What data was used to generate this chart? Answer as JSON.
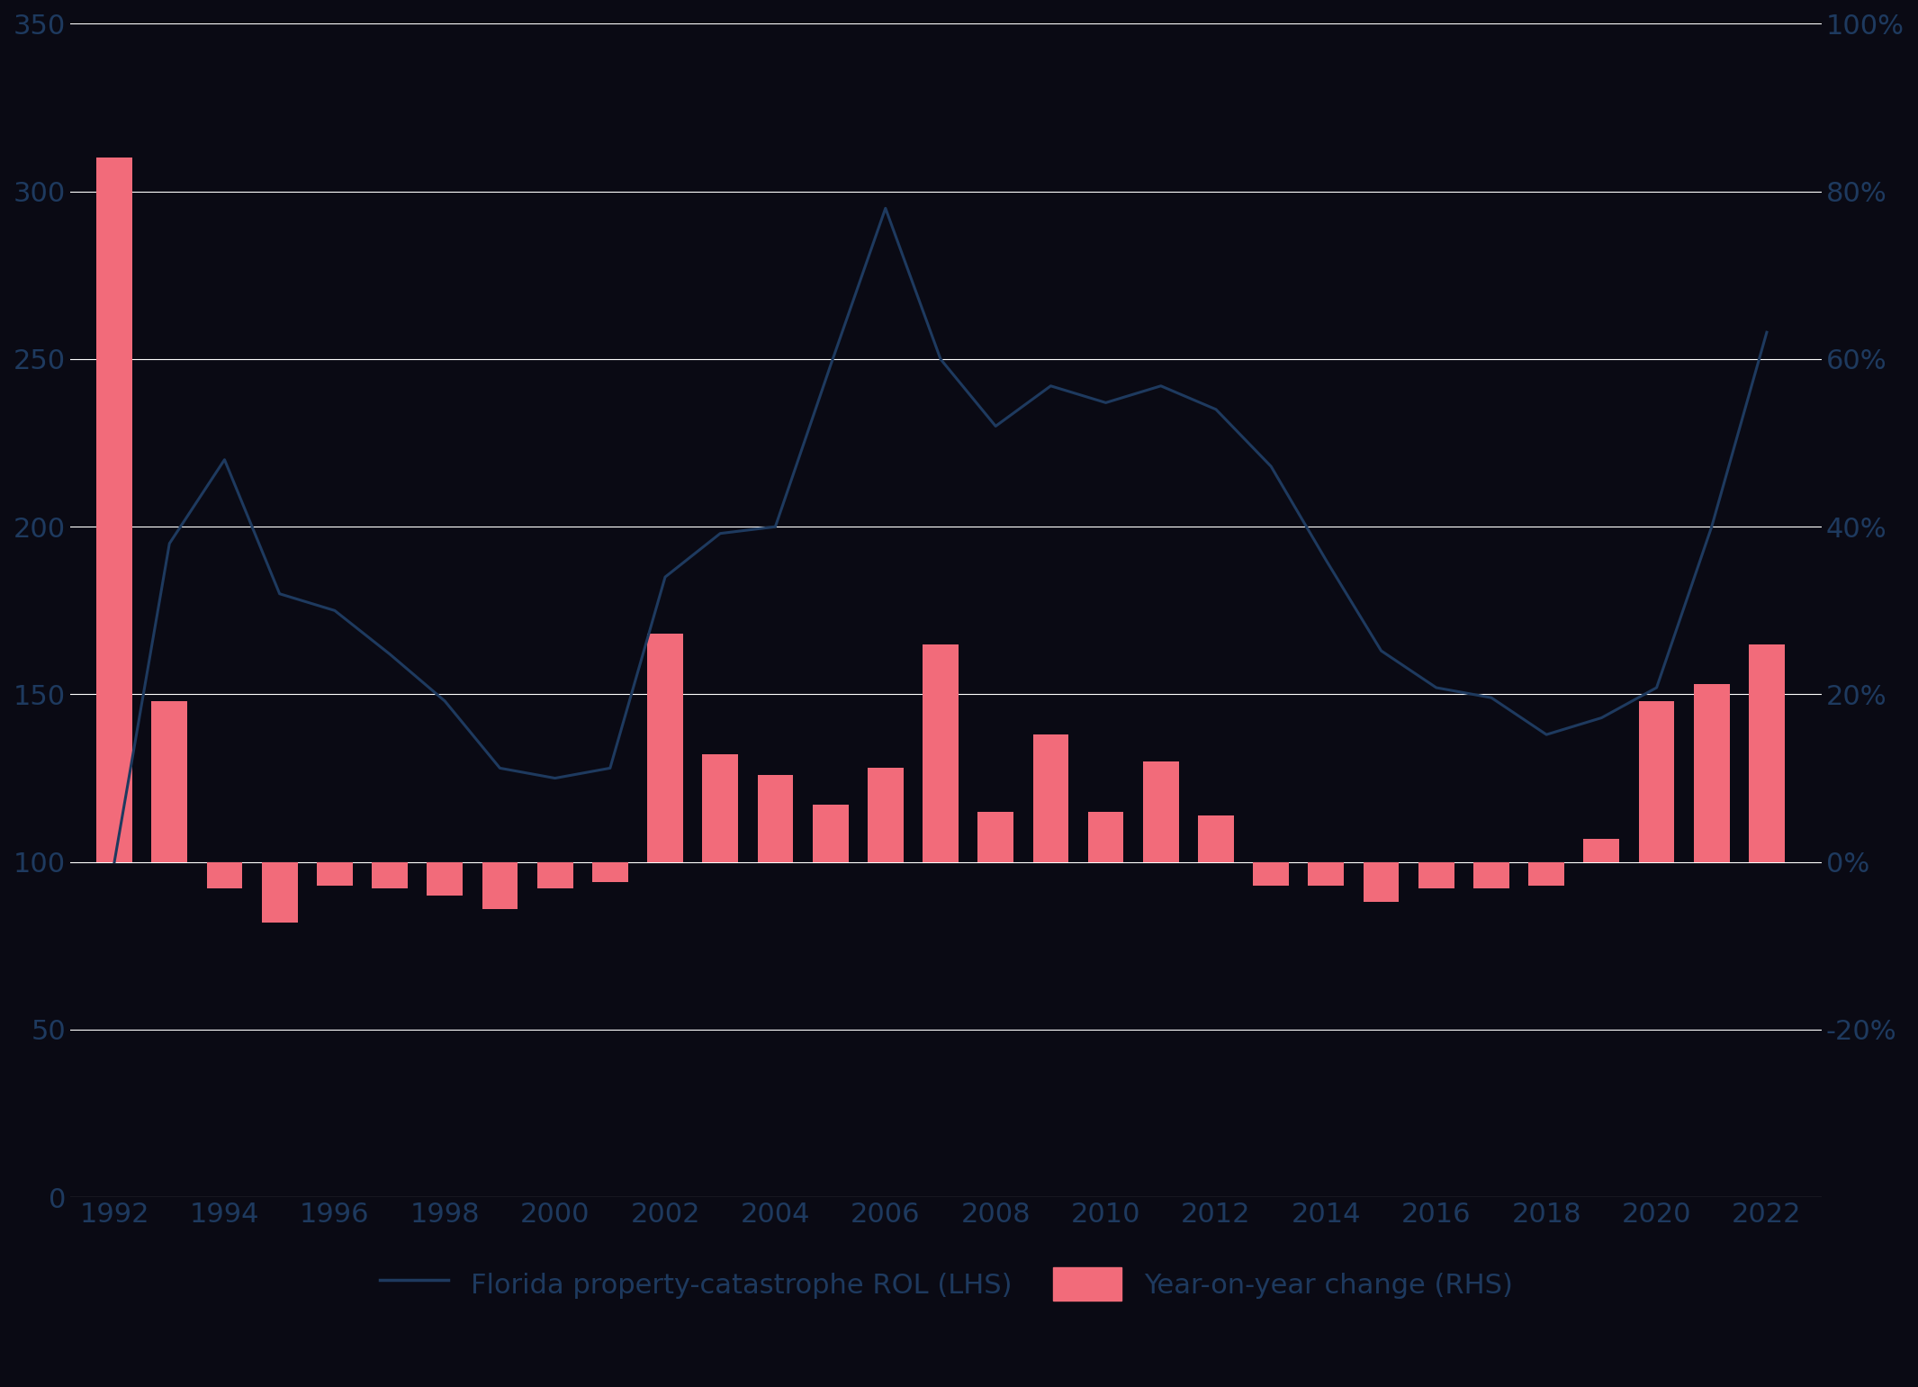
{
  "years": [
    1992,
    1993,
    1994,
    1995,
    1996,
    1997,
    1998,
    1999,
    2000,
    2001,
    2002,
    2003,
    2004,
    2005,
    2006,
    2007,
    2008,
    2009,
    2010,
    2011,
    2012,
    2013,
    2014,
    2015,
    2016,
    2017,
    2018,
    2019,
    2020,
    2021,
    2022
  ],
  "line_values": [
    100,
    195,
    220,
    180,
    175,
    162,
    148,
    128,
    125,
    128,
    185,
    198,
    200,
    248,
    295,
    250,
    230,
    242,
    237,
    242,
    235,
    218,
    190,
    163,
    152,
    149,
    138,
    143,
    152,
    200,
    258
  ],
  "bar_tops": [
    310,
    148,
    92,
    82,
    93,
    92,
    90,
    86,
    92,
    94,
    168,
    132,
    126,
    117,
    128,
    165,
    115,
    138,
    115,
    130,
    114,
    93,
    93,
    88,
    92,
    92,
    93,
    107,
    148,
    153,
    165
  ],
  "bar_bottoms": [
    100,
    100,
    100,
    100,
    100,
    100,
    100,
    100,
    100,
    100,
    100,
    100,
    100,
    100,
    100,
    100,
    100,
    100,
    100,
    100,
    100,
    100,
    100,
    100,
    100,
    100,
    100,
    100,
    100,
    100,
    100
  ],
  "background_color": "#0a0a14",
  "line_color": "#1e3a5f",
  "bar_color": "#f26b7a",
  "grid_color": "#ffffff",
  "text_color": "#1e3a5f",
  "lhs_ylim": [
    0,
    350
  ],
  "lhs_yticks": [
    0,
    50,
    100,
    150,
    200,
    250,
    300,
    350
  ],
  "rhs_ytick_positions": [
    50,
    100,
    150,
    200,
    250,
    300,
    350
  ],
  "rhs_ytick_labels": [
    "-20%",
    "0%",
    "20%",
    "40%",
    "60%",
    "80%",
    "100%"
  ],
  "xlim": [
    1991.2,
    2023.0
  ],
  "x_ticks": [
    1992,
    1994,
    1996,
    1998,
    2000,
    2002,
    2004,
    2006,
    2008,
    2010,
    2012,
    2014,
    2016,
    2018,
    2020,
    2022
  ],
  "legend_line_label": "Florida property-catastrophe ROL (LHS)",
  "legend_bar_label": "Year-on-year change (RHS)",
  "figsize": [
    21.31,
    15.41
  ],
  "bar_width": 0.65
}
